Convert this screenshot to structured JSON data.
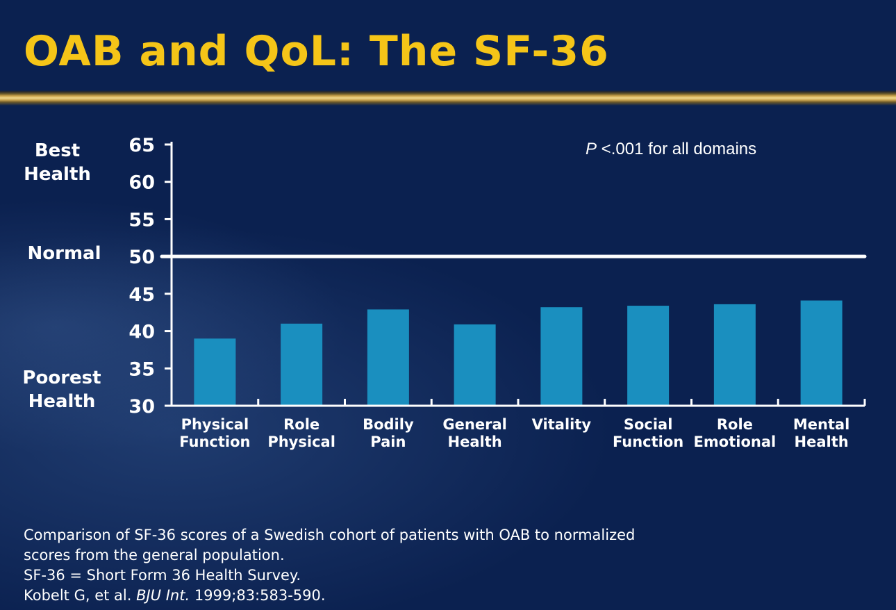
{
  "title": "OAB and QoL: The SF-36",
  "colors": {
    "background": "#0b2150",
    "title": "#f5c518",
    "bar": "#1a8fbf",
    "text": "#ffffff"
  },
  "side_labels": {
    "best": "Best Health",
    "normal": "Normal",
    "poorest": "Poorest Health"
  },
  "annotation": {
    "p_letter": "P",
    "p_rest": " <.001 for all domains"
  },
  "chart_data": {
    "type": "bar",
    "title": "",
    "xlabel": "",
    "ylabel": "",
    "ylim": [
      30,
      65
    ],
    "yticks": [
      30,
      35,
      40,
      45,
      50,
      55,
      60,
      65
    ],
    "reference_line": {
      "value": 50,
      "label": "Normal"
    },
    "categories": [
      [
        "Physical",
        "Function"
      ],
      [
        "Role",
        "Physical"
      ],
      [
        "Bodily",
        "Pain"
      ],
      [
        "General",
        "Health"
      ],
      [
        "Vitality"
      ],
      [
        "Social",
        "Function"
      ],
      [
        "Role",
        "Emotional"
      ],
      [
        "Mental",
        "Health"
      ]
    ],
    "values": [
      39.0,
      41.0,
      42.9,
      40.9,
      43.2,
      43.4,
      43.6,
      44.1
    ]
  },
  "footnote": {
    "line1": "Comparison of SF-36 scores of a Swedish cohort of patients with OAB to normalized",
    "line2": "scores from the general population.",
    "line3": "SF-36 = Short Form 36 Health Survey.",
    "citation_pre": "Kobelt G, et al. ",
    "citation_journal": "BJU Int.",
    "citation_post": " 1999;83:583-590."
  }
}
